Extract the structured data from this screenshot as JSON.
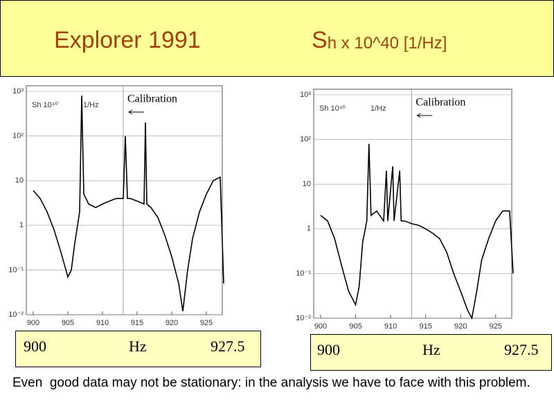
{
  "heading": {
    "title": "Explorer 1991",
    "symbol": "S",
    "symbol_rest": "h x 10^40  [1/Hz]"
  },
  "chart_data": [
    {
      "type": "line",
      "color": "#000000",
      "ylog": true,
      "grid": "y",
      "xlim": [
        900,
        927.5
      ],
      "ylim": [
        0.01,
        1000
      ],
      "xticks": [
        900,
        905,
        910,
        915,
        920,
        925
      ],
      "yticks": [
        {
          "value": 1000,
          "label": "10³"
        },
        {
          "value": 100,
          "label": "10²"
        },
        10,
        1,
        {
          "value": 0.1,
          "label": "10⁻¹"
        },
        {
          "value": 0.01,
          "label": "10⁻²"
        }
      ],
      "labels": [
        "Sh 10⁴⁰",
        "1/Hz"
      ],
      "annotation": {
        "text": "Calibration",
        "x": 913
      },
      "x": [
        900,
        901,
        902,
        903,
        904,
        905,
        905.5,
        906,
        906.7,
        907,
        907.3,
        908,
        909,
        910,
        911,
        912,
        913,
        913.3,
        913.6,
        914,
        915,
        916,
        916.2,
        916.4,
        917,
        918,
        919,
        920,
        921,
        921.6,
        922.3,
        923,
        924,
        925,
        926,
        927,
        927.5
      ],
      "values": [
        6,
        4,
        2,
        0.8,
        0.25,
        0.07,
        0.1,
        0.4,
        2,
        800,
        5,
        3,
        2.5,
        3,
        3.5,
        4,
        4,
        100,
        4,
        4,
        3.5,
        3,
        200,
        3,
        2.5,
        1.5,
        0.6,
        0.2,
        0.05,
        0.012,
        0.1,
        0.5,
        2,
        5,
        10,
        12,
        0.05
      ]
    },
    {
      "type": "line",
      "color": "#000000",
      "ylog": true,
      "grid": "y",
      "xlim": [
        900,
        927.5
      ],
      "ylim": [
        0.01,
        1000
      ],
      "xticks": [
        900,
        905,
        910,
        915,
        920,
        925
      ],
      "yticks": [
        {
          "value": 1000,
          "label": "10³"
        },
        {
          "value": 100,
          "label": "10²"
        },
        10,
        1,
        {
          "value": 0.1,
          "label": "10⁻¹"
        },
        {
          "value": 0.01,
          "label": "10⁻²"
        }
      ],
      "labels": [
        "Sh 10⁴⁰",
        "1/Hz"
      ],
      "annotation": {
        "text": "Calibration",
        "x": 913
      },
      "x": [
        900,
        901,
        902,
        903,
        904,
        905,
        905.5,
        906,
        906.6,
        906.9,
        907.2,
        908,
        909,
        909.4,
        909.6,
        910.3,
        910.5,
        911.3,
        911.5,
        912,
        913,
        914,
        915,
        916,
        917,
        918,
        919,
        920,
        921,
        921.6,
        922.3,
        923,
        924,
        925,
        926,
        927,
        927.5
      ],
      "values": [
        2,
        1.5,
        0.6,
        0.15,
        0.04,
        0.02,
        0.05,
        0.5,
        1.5,
        80,
        2,
        2.5,
        1.5,
        20,
        1.5,
        25,
        1.5,
        20,
        1.5,
        1.5,
        1.3,
        1.2,
        1,
        0.8,
        0.6,
        0.3,
        0.1,
        0.04,
        0.015,
        0.01,
        0.04,
        0.2,
        0.6,
        1.5,
        2.5,
        2.5,
        0.1
      ]
    }
  ],
  "boxes": [
    {
      "start": "900",
      "unit": "Hz",
      "end": "927.5"
    },
    {
      "start": "900",
      "unit": "Hz",
      "end": "927.5"
    }
  ],
  "caption": "Even  good data may not be stationary: in the analysis we have to face with this problem."
}
